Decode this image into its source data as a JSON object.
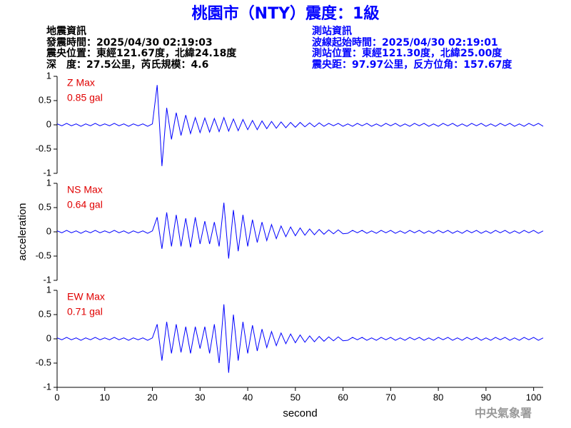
{
  "header": {
    "title": "桃園市（NTY）震度：1級",
    "left": [
      "地震資訊",
      "發震時間：2025/04/30 02:19:03",
      "震央位置：東經121.67度，北緯24.18度",
      "深　度：27.5公里，芮氏規模：4.6"
    ],
    "right": [
      "測站資訊",
      "波線起始時間：2025/04/30 02:19:01",
      "測站位置：東經121.30度，北緯25.00度",
      "震央距：97.97公里，反方位角：157.67度"
    ]
  },
  "footer": "中央氣象署",
  "chart_data": [
    {
      "type": "line",
      "annotations": [
        "Z Max",
        "0.85 gal"
      ],
      "color": "#0000ff",
      "xlim": [
        0,
        102
      ],
      "ylim": [
        -1,
        1
      ],
      "yticks": [
        -1,
        -0.5,
        0,
        0.5,
        1
      ],
      "x": [
        0,
        1,
        2,
        3,
        4,
        5,
        6,
        7,
        8,
        9,
        10,
        11,
        12,
        13,
        14,
        15,
        16,
        17,
        18,
        19,
        20,
        21,
        22,
        23,
        24,
        25,
        26,
        27,
        28,
        29,
        30,
        31,
        32,
        33,
        34,
        35,
        36,
        37,
        38,
        39,
        40,
        41,
        42,
        43,
        44,
        45,
        46,
        47,
        48,
        49,
        50,
        51,
        52,
        53,
        54,
        55,
        56,
        57,
        58,
        59,
        60,
        61,
        62,
        63,
        64,
        65,
        66,
        67,
        68,
        69,
        70,
        71,
        72,
        73,
        74,
        75,
        76,
        77,
        78,
        79,
        80,
        81,
        82,
        83,
        84,
        85,
        86,
        87,
        88,
        89,
        90,
        91,
        92,
        93,
        94,
        95,
        96,
        97,
        98,
        99,
        100,
        101,
        102
      ],
      "values": [
        0.02,
        -0.02,
        0.03,
        -0.02,
        0.02,
        -0.03,
        0.02,
        -0.02,
        0.03,
        -0.02,
        0.02,
        -0.02,
        0.03,
        -0.02,
        0.02,
        -0.03,
        0.02,
        -0.02,
        0.02,
        -0.03,
        0.02,
        0.82,
        -0.85,
        0.35,
        -0.3,
        0.25,
        -0.22,
        0.2,
        -0.18,
        0.15,
        -0.16,
        0.14,
        -0.15,
        0.13,
        -0.14,
        0.15,
        -0.13,
        0.12,
        -0.12,
        0.11,
        -0.1,
        0.09,
        -0.1,
        0.08,
        -0.08,
        0.07,
        -0.07,
        0.06,
        -0.06,
        0.05,
        -0.05,
        0.05,
        -0.04,
        0.04,
        -0.04,
        0.04,
        -0.03,
        0.03,
        -0.02,
        0.03,
        -0.03,
        0.02,
        -0.03,
        0.03,
        -0.02,
        0.03,
        -0.03,
        0.02,
        -0.03,
        0.03,
        -0.02,
        0.03,
        -0.03,
        0.02,
        -0.03,
        0.03,
        -0.02,
        0.03,
        -0.03,
        0.02,
        -0.03,
        0.03,
        -0.02,
        0.03,
        -0.03,
        0.02,
        -0.03,
        0.03,
        -0.02,
        0.03,
        -0.03,
        0.02,
        -0.03,
        0.03,
        -0.02,
        0.03,
        -0.03,
        0.02,
        -0.03,
        0.03,
        -0.02,
        0.03,
        -0.03
      ]
    },
    {
      "type": "line",
      "annotations": [
        "NS Max",
        "0.64 gal"
      ],
      "color": "#0000ff",
      "ylabel": "acceleration",
      "xlim": [
        0,
        102
      ],
      "ylim": [
        -1,
        1
      ],
      "yticks": [
        -1,
        -0.5,
        0,
        0.5,
        1
      ],
      "x": [
        0,
        1,
        2,
        3,
        4,
        5,
        6,
        7,
        8,
        9,
        10,
        11,
        12,
        13,
        14,
        15,
        16,
        17,
        18,
        19,
        20,
        21,
        22,
        23,
        24,
        25,
        26,
        27,
        28,
        29,
        30,
        31,
        32,
        33,
        34,
        35,
        36,
        37,
        38,
        39,
        40,
        41,
        42,
        43,
        44,
        45,
        46,
        47,
        48,
        49,
        50,
        51,
        52,
        53,
        54,
        55,
        56,
        57,
        58,
        59,
        60,
        61,
        62,
        63,
        64,
        65,
        66,
        67,
        68,
        69,
        70,
        71,
        72,
        73,
        74,
        75,
        76,
        77,
        78,
        79,
        80,
        81,
        82,
        83,
        84,
        85,
        86,
        87,
        88,
        89,
        90,
        91,
        92,
        93,
        94,
        95,
        96,
        97,
        98,
        99,
        100,
        101,
        102
      ],
      "values": [
        0.02,
        -0.02,
        0.03,
        -0.02,
        0.02,
        -0.03,
        0.02,
        -0.02,
        0.03,
        -0.02,
        0.02,
        -0.02,
        0.03,
        -0.02,
        0.02,
        -0.03,
        0.02,
        -0.02,
        0.02,
        -0.03,
        0.02,
        0.3,
        -0.35,
        0.4,
        -0.3,
        0.35,
        -0.3,
        0.28,
        -0.32,
        0.3,
        -0.25,
        0.22,
        -0.25,
        0.2,
        -0.3,
        0.6,
        -0.55,
        0.45,
        -0.4,
        0.35,
        -0.3,
        0.25,
        -0.22,
        0.2,
        -0.18,
        0.15,
        -0.14,
        0.12,
        -0.1,
        0.1,
        -0.08,
        0.08,
        -0.07,
        0.06,
        -0.06,
        0.05,
        -0.05,
        0.04,
        -0.04,
        0.04,
        -0.04,
        -0.03,
        0.03,
        -0.02,
        0.03,
        -0.03,
        0.02,
        -0.03,
        0.03,
        -0.02,
        0.03,
        -0.03,
        0.02,
        -0.03,
        0.03,
        -0.02,
        0.03,
        -0.03,
        0.02,
        -0.03,
        0.03,
        -0.02,
        0.03,
        -0.03,
        0.02,
        -0.03,
        0.03,
        -0.02,
        0.03,
        -0.03,
        0.02,
        -0.03,
        0.03,
        -0.02,
        0.03,
        -0.03,
        0.02,
        -0.03,
        0.03,
        -0.02,
        0.03,
        -0.03,
        0.02
      ]
    },
    {
      "type": "line",
      "annotations": [
        "EW Max",
        "0.71 gal"
      ],
      "color": "#0000ff",
      "xlabel": "second",
      "xlim": [
        0,
        102
      ],
      "ylim": [
        -1,
        1
      ],
      "yticks": [
        -1,
        -0.5,
        0,
        0.5,
        1
      ],
      "xticks": [
        0,
        10,
        20,
        30,
        40,
        50,
        60,
        70,
        80,
        90,
        100
      ],
      "x": [
        0,
        1,
        2,
        3,
        4,
        5,
        6,
        7,
        8,
        9,
        10,
        11,
        12,
        13,
        14,
        15,
        16,
        17,
        18,
        19,
        20,
        21,
        22,
        23,
        24,
        25,
        26,
        27,
        28,
        29,
        30,
        31,
        32,
        33,
        34,
        35,
        36,
        37,
        38,
        39,
        40,
        41,
        42,
        43,
        44,
        45,
        46,
        47,
        48,
        49,
        50,
        51,
        52,
        53,
        54,
        55,
        56,
        57,
        58,
        59,
        60,
        61,
        62,
        63,
        64,
        65,
        66,
        67,
        68,
        69,
        70,
        71,
        72,
        73,
        74,
        75,
        76,
        77,
        78,
        79,
        80,
        81,
        82,
        83,
        84,
        85,
        86,
        87,
        88,
        89,
        90,
        91,
        92,
        93,
        94,
        95,
        96,
        97,
        98,
        99,
        100,
        101,
        102
      ],
      "values": [
        0.02,
        -0.02,
        0.03,
        -0.02,
        0.02,
        -0.03,
        0.02,
        -0.02,
        0.03,
        -0.02,
        0.02,
        -0.02,
        0.03,
        -0.02,
        0.02,
        -0.03,
        0.02,
        -0.02,
        0.02,
        -0.03,
        0.02,
        0.3,
        -0.45,
        0.35,
        -0.3,
        0.3,
        -0.28,
        0.25,
        -0.3,
        0.25,
        -0.2,
        0.25,
        -0.3,
        0.3,
        -0.5,
        0.71,
        -0.7,
        0.5,
        -0.45,
        0.35,
        -0.3,
        0.28,
        -0.25,
        0.2,
        -0.18,
        0.15,
        -0.14,
        0.12,
        -0.1,
        0.1,
        -0.08,
        0.08,
        -0.07,
        0.06,
        -0.06,
        0.05,
        -0.05,
        0.04,
        -0.04,
        0.04,
        -0.04,
        -0.03,
        0.03,
        -0.02,
        0.03,
        -0.03,
        0.02,
        -0.03,
        0.03,
        -0.02,
        0.03,
        -0.03,
        0.02,
        -0.03,
        0.03,
        -0.02,
        0.03,
        -0.03,
        0.02,
        -0.03,
        0.03,
        -0.02,
        0.03,
        -0.03,
        0.02,
        -0.03,
        0.03,
        -0.02,
        0.03,
        -0.03,
        0.02,
        -0.03,
        0.03,
        -0.02,
        0.03,
        -0.03,
        0.02,
        -0.03,
        0.03,
        -0.02,
        0.03,
        -0.03,
        0.02
      ]
    }
  ]
}
